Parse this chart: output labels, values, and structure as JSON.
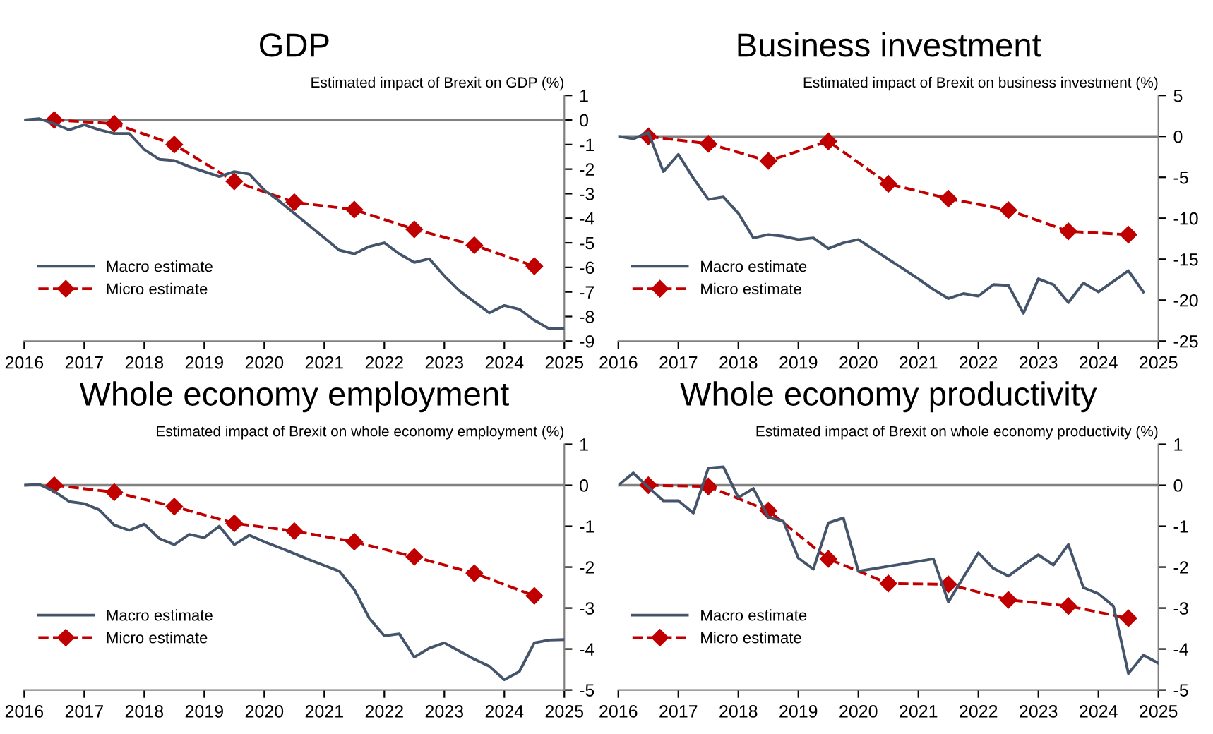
{
  "chart_data": [
    {
      "type": "line",
      "title": "GDP",
      "ylabel": "Estimated impact of Brexit on GDP (%)",
      "xlim": [
        2016,
        2025
      ],
      "xticks": [
        2016,
        2017,
        2018,
        2019,
        2020,
        2021,
        2022,
        2023,
        2024,
        2025
      ],
      "ylim": [
        -9,
        1
      ],
      "yticks": [
        -9,
        -8,
        -7,
        -6,
        -5,
        -4,
        -3,
        -2,
        -1,
        0,
        1
      ],
      "legend": "bottom left",
      "grid": false,
      "ref_lines": [
        {
          "axis": "y",
          "value": 0,
          "color": "#808080"
        }
      ],
      "series": [
        {
          "name": "Macro estimate",
          "color": "#44546a",
          "marker": "none",
          "line_style": "solid",
          "x": [
            2016.0,
            2016.25,
            2016.5,
            2016.75,
            2017.0,
            2017.25,
            2017.5,
            2017.75,
            2018.0,
            2018.25,
            2018.5,
            2018.75,
            2019.0,
            2019.25,
            2019.5,
            2019.75,
            2020.0,
            2020.25,
            2020.5,
            2020.75,
            2021.0,
            2021.25,
            2021.5,
            2021.75,
            2022.0,
            2022.25,
            2022.5,
            2022.75,
            2023.0,
            2023.25,
            2023.5,
            2023.75,
            2024.0,
            2024.25,
            2024.5,
            2024.75,
            2025.0
          ],
          "values": [
            0,
            0.05,
            -0.15,
            -0.4,
            -0.2,
            -0.4,
            -0.55,
            -0.55,
            -1.2,
            -1.6,
            -1.65,
            -1.9,
            -2.1,
            -2.3,
            -2.1,
            -2.2,
            -2.85,
            -3.3,
            -3.8,
            -4.3,
            -4.8,
            -5.3,
            -5.45,
            -5.15,
            -5.0,
            -5.45,
            -5.8,
            -5.65,
            -6.35,
            -6.95,
            -7.4,
            -7.85,
            -7.55,
            -7.7,
            -8.15,
            -8.5,
            -8.5
          ]
        },
        {
          "name": "Micro estimate",
          "color": "#c00000",
          "marker": "diamond",
          "line_style": "dashed",
          "x": [
            2016.5,
            2017.5,
            2018.5,
            2019.5,
            2020.5,
            2021.5,
            2022.5,
            2023.5,
            2024.5
          ],
          "values": [
            0,
            -0.15,
            -1.0,
            -2.5,
            -3.35,
            -3.65,
            -4.45,
            -5.1,
            -5.95
          ]
        }
      ]
    },
    {
      "type": "line",
      "title": "Business investment",
      "ylabel": "Estimated impact of Brexit on business investment (%)",
      "xlim": [
        2016,
        2025
      ],
      "xticks": [
        2016,
        2017,
        2018,
        2019,
        2020,
        2021,
        2022,
        2023,
        2024,
        2025
      ],
      "ylim": [
        -25,
        5
      ],
      "yticks": [
        -25,
        -20,
        -15,
        -10,
        -5,
        0,
        5
      ],
      "legend": "bottom left",
      "grid": false,
      "ref_lines": [
        {
          "axis": "y",
          "value": 0,
          "color": "#808080"
        }
      ],
      "series": [
        {
          "name": "Macro estimate",
          "color": "#44546a",
          "marker": "none",
          "line_style": "solid",
          "x": [
            2016.0,
            2016.25,
            2016.5,
            2016.75,
            2017.0,
            2017.25,
            2017.5,
            2017.75,
            2018.0,
            2018.25,
            2018.5,
            2018.75,
            2019.0,
            2019.25,
            2019.5,
            2019.75,
            2020.0,
            2020.25,
            2020.5,
            2020.75,
            2021.0,
            2021.25,
            2021.5,
            2021.75,
            2022.0,
            2022.25,
            2022.5,
            2022.75,
            2023.0,
            2023.25,
            2023.5,
            2023.75,
            2024.0,
            2024.25,
            2024.5,
            2024.75
          ],
          "values": [
            0,
            -0.3,
            0.5,
            -4.3,
            -2.2,
            -5.1,
            -7.7,
            -7.4,
            -9.4,
            -12.4,
            -12.0,
            -12.2,
            -12.6,
            -12.4,
            -13.7,
            -13.0,
            -12.6,
            -13.8,
            -15.0,
            -16.2,
            -17.4,
            -18.7,
            -19.8,
            -19.2,
            -19.5,
            -18.1,
            -18.2,
            -21.6,
            -17.4,
            -18.1,
            -20.3,
            -17.9,
            -19.0,
            -17.7,
            -16.4,
            -19.0
          ]
        },
        {
          "name": "Micro estimate",
          "color": "#c00000",
          "marker": "diamond",
          "line_style": "dashed",
          "x": [
            2016.5,
            2017.5,
            2018.5,
            2019.5,
            2020.5,
            2021.5,
            2022.5,
            2023.5,
            2024.5
          ],
          "values": [
            0,
            -0.9,
            -3.0,
            -0.6,
            -5.8,
            -7.6,
            -9.0,
            -11.6,
            -12.0
          ]
        }
      ]
    },
    {
      "type": "line",
      "title": "Whole economy employment",
      "ylabel": "Estimated impact of Brexit on whole economy employment (%)",
      "xlim": [
        2016,
        2025
      ],
      "xticks": [
        2016,
        2017,
        2018,
        2019,
        2020,
        2021,
        2022,
        2023,
        2024,
        2025
      ],
      "ylim": [
        -5,
        1
      ],
      "yticks": [
        -5,
        -4,
        -3,
        -2,
        -1,
        0,
        1
      ],
      "legend": "bottom left",
      "grid": false,
      "ref_lines": [
        {
          "axis": "y",
          "value": 0,
          "color": "#808080"
        }
      ],
      "series": [
        {
          "name": "Macro estimate",
          "color": "#44546a",
          "marker": "none",
          "line_style": "solid",
          "x": [
            2016.0,
            2016.25,
            2016.5,
            2016.75,
            2017.0,
            2017.25,
            2017.5,
            2017.75,
            2018.0,
            2018.25,
            2018.5,
            2018.75,
            2019.0,
            2019.25,
            2019.5,
            2019.75,
            2020.0,
            2020.25,
            2020.5,
            2020.75,
            2021.0,
            2021.25,
            2021.5,
            2021.75,
            2022.0,
            2022.25,
            2022.5,
            2022.75,
            2023.0,
            2023.25,
            2023.5,
            2023.75,
            2024.0,
            2024.25,
            2024.5,
            2024.75,
            2025.0
          ],
          "values": [
            0,
            0.02,
            -0.15,
            -0.4,
            -0.45,
            -0.6,
            -0.97,
            -1.1,
            -0.95,
            -1.3,
            -1.45,
            -1.2,
            -1.28,
            -1.0,
            -1.45,
            -1.22,
            -1.38,
            -1.52,
            -1.67,
            -1.82,
            -1.96,
            -2.1,
            -2.55,
            -3.25,
            -3.68,
            -3.63,
            -4.2,
            -3.98,
            -3.85,
            -4.05,
            -4.25,
            -4.42,
            -4.75,
            -4.55,
            -3.85,
            -3.78,
            -3.77
          ]
        },
        {
          "name": "Micro estimate",
          "color": "#c00000",
          "marker": "diamond",
          "line_style": "dashed",
          "x": [
            2016.5,
            2017.5,
            2018.5,
            2019.5,
            2020.5,
            2021.5,
            2022.5,
            2023.5,
            2024.5
          ],
          "values": [
            0,
            -0.17,
            -0.52,
            -0.93,
            -1.12,
            -1.38,
            -1.75,
            -2.15,
            -2.7
          ]
        }
      ]
    },
    {
      "type": "line",
      "title": "Whole economy productivity",
      "ylabel": "Estimated impact of Brexit on whole economy productivity (%)",
      "xlim": [
        2016,
        2025
      ],
      "xticks": [
        2016,
        2017,
        2018,
        2019,
        2020,
        2021,
        2022,
        2023,
        2024,
        2025
      ],
      "ylim": [
        -5,
        1
      ],
      "yticks": [
        -5,
        -4,
        -3,
        -2,
        -1,
        0,
        1
      ],
      "legend": "bottom left",
      "grid": false,
      "ref_lines": [
        {
          "axis": "y",
          "value": 0,
          "color": "#808080"
        }
      ],
      "series": [
        {
          "name": "Macro estimate",
          "color": "#44546a",
          "marker": "none",
          "line_style": "solid",
          "x": [
            2016.0,
            2016.25,
            2016.5,
            2016.75,
            2017.0,
            2017.25,
            2017.5,
            2017.75,
            2018.0,
            2018.25,
            2018.5,
            2018.75,
            2019.0,
            2019.25,
            2019.5,
            2019.75,
            2020.0,
            2020.25,
            2020.5,
            2020.75,
            2021.0,
            2021.25,
            2021.5,
            2021.75,
            2022.0,
            2022.25,
            2022.5,
            2022.75,
            2023.0,
            2023.25,
            2023.5,
            2023.75,
            2024.0,
            2024.25,
            2024.5,
            2024.75,
            2025.0
          ],
          "values": [
            0,
            0.3,
            -0.05,
            -0.38,
            -0.38,
            -0.68,
            0.42,
            0.45,
            -0.3,
            -0.08,
            -0.78,
            -0.88,
            -1.78,
            -2.05,
            -0.92,
            -0.8,
            -2.1,
            -2.04,
            -1.98,
            -1.92,
            -1.86,
            -1.8,
            -2.85,
            -2.25,
            -1.65,
            -2.03,
            -2.22,
            -1.95,
            -1.7,
            -1.95,
            -1.45,
            -2.5,
            -2.65,
            -2.95,
            -4.6,
            -4.15,
            -4.35
          ]
        },
        {
          "name": "Micro estimate",
          "color": "#c00000",
          "marker": "diamond",
          "line_style": "dashed",
          "x": [
            2016.5,
            2017.5,
            2018.5,
            2019.5,
            2020.5,
            2021.5,
            2022.5,
            2023.5,
            2024.5
          ],
          "values": [
            0,
            -0.03,
            -0.62,
            -1.8,
            -2.4,
            -2.42,
            -2.8,
            -2.95,
            -3.25
          ]
        }
      ]
    }
  ]
}
